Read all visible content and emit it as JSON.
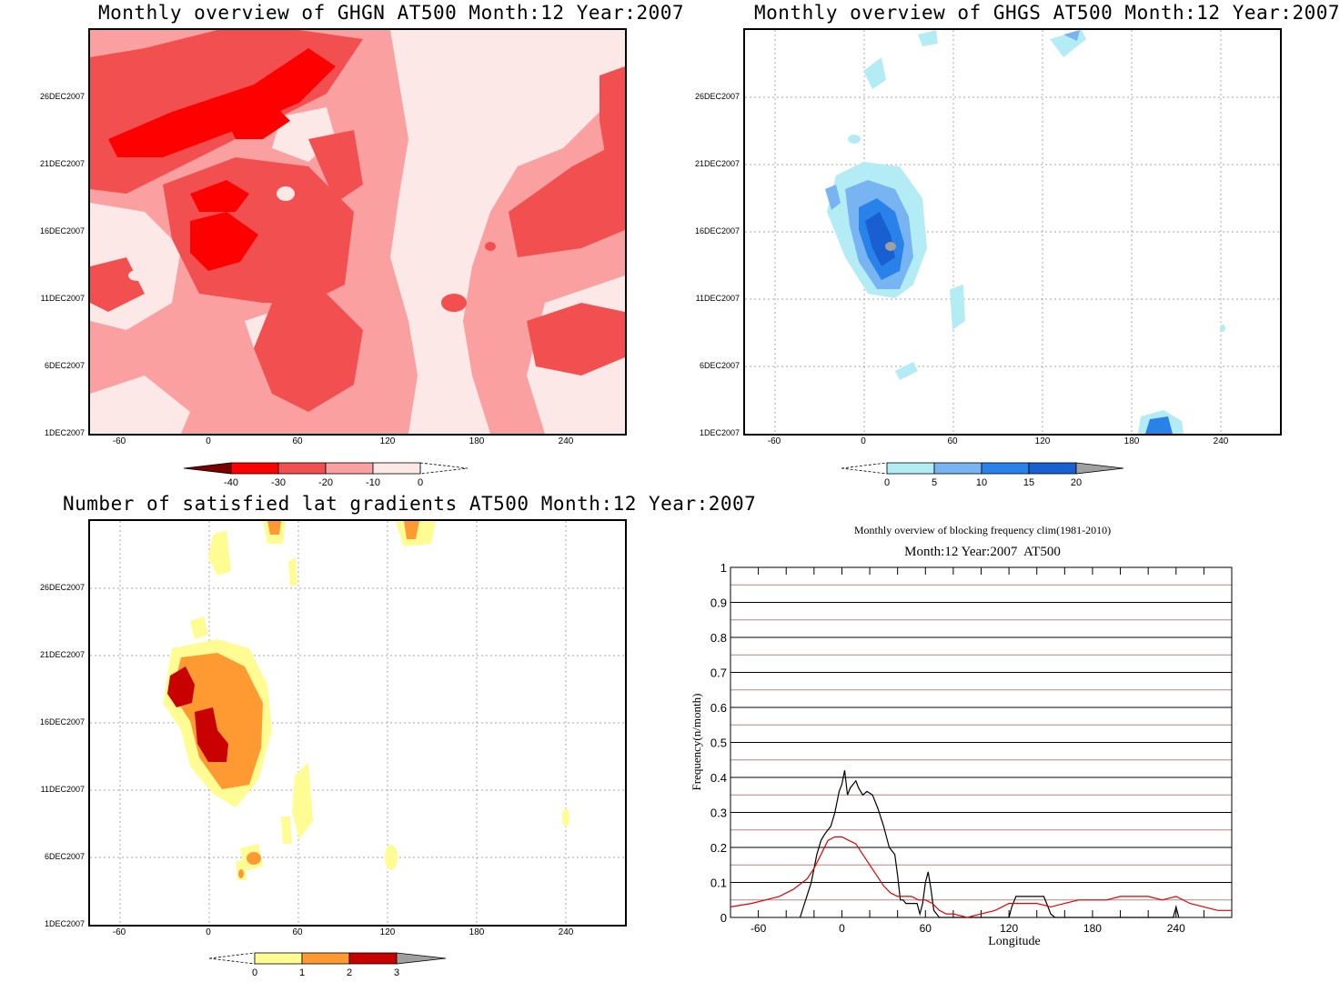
{
  "chart_data": [
    {
      "type": "heatmap",
      "title": "Monthly overview of GHGN AT500 Month:12 Year:2007",
      "x_ticks": [
        "-60",
        "0",
        "60",
        "120",
        "180",
        "240"
      ],
      "y_ticks": [
        "1DEC2007",
        "6DEC2007",
        "11DEC2007",
        "16DEC2007",
        "21DEC2007",
        "26DEC2007"
      ],
      "xlim": [
        -80,
        280
      ],
      "colorbar": {
        "labels": [
          "-40",
          "-30",
          "-20",
          "-10",
          "0"
        ],
        "colors": [
          "#7a0000",
          "#ff0000",
          "#f25050",
          "#fba0a0",
          "#fde8e8"
        ]
      }
    },
    {
      "type": "heatmap",
      "title": "Monthly overview of GHGS AT500 Month:12 Year:2007",
      "x_ticks": [
        "-60",
        "0",
        "60",
        "120",
        "180",
        "240"
      ],
      "y_ticks": [
        "1DEC2007",
        "6DEC2007",
        "11DEC2007",
        "16DEC2007",
        "21DEC2007",
        "26DEC2007"
      ],
      "xlim": [
        -80,
        280
      ],
      "colorbar": {
        "labels": [
          "0",
          "5",
          "10",
          "15",
          "20"
        ],
        "colors": [
          "#b4ecf6",
          "#78b4f2",
          "#2882ea",
          "#1860d2",
          "#a0a0a0"
        ]
      }
    },
    {
      "type": "heatmap",
      "title": "Number of satisfied lat gradients AT500 Month:12 Year:2007",
      "x_ticks": [
        "-60",
        "0",
        "60",
        "120",
        "180",
        "240"
      ],
      "y_ticks": [
        "1DEC2007",
        "6DEC2007",
        "11DEC2007",
        "16DEC2007",
        "21DEC2007",
        "26DEC2007"
      ],
      "xlim": [
        -80,
        280
      ],
      "colorbar": {
        "labels": [
          "0",
          "1",
          "2",
          "3"
        ],
        "colors": [
          "#fffc94",
          "#ff9a32",
          "#c80000",
          "#a0a0a0"
        ]
      }
    },
    {
      "type": "line",
      "title": "Monthly overview of blocking frequency clim(1981-2010)",
      "subtitle": "Month:12 Year:2007  AT500",
      "xlabel": "Longitude",
      "ylabel": "Frequency(n/month)",
      "xlim": [
        -80,
        280
      ],
      "ylim": [
        0,
        1
      ],
      "x_ticks": [
        "-60",
        "0",
        "60",
        "120",
        "180",
        "240"
      ],
      "y_ticks": [
        "0",
        "0.1",
        "0.2",
        "0.3",
        "0.4",
        "0.5",
        "0.6",
        "0.7",
        "0.8",
        "0.9",
        "1"
      ],
      "series": [
        {
          "color": "#000000",
          "x": [
            -30,
            -22,
            -18,
            -15,
            -12,
            -8,
            -5,
            -2,
            0,
            2,
            4,
            6,
            8,
            10,
            12,
            15,
            18,
            22,
            26,
            30,
            34,
            38,
            40,
            42,
            44,
            46,
            50,
            54,
            56,
            58,
            60,
            62,
            64,
            66,
            70,
            100,
            120,
            122,
            125,
            128,
            145,
            148,
            150,
            153,
            238,
            240,
            242
          ],
          "y": [
            0,
            0.1,
            0.18,
            0.22,
            0.24,
            0.26,
            0.3,
            0.36,
            0.38,
            0.42,
            0.35,
            0.37,
            0.38,
            0.39,
            0.37,
            0.35,
            0.36,
            0.35,
            0.31,
            0.26,
            0.2,
            0.18,
            0.12,
            0.05,
            0.05,
            0.04,
            0.04,
            0.04,
            0.01,
            0.04,
            0.1,
            0.13,
            0.08,
            0.02,
            0,
            0,
            0,
            0.03,
            0.06,
            0.06,
            0.06,
            0.03,
            0.01,
            0,
            0,
            0.03,
            0
          ]
        },
        {
          "color": "#e00000",
          "x": [
            -80,
            -65,
            -55,
            -45,
            -35,
            -25,
            -20,
            -15,
            -10,
            -5,
            0,
            5,
            10,
            15,
            20,
            25,
            30,
            35,
            40,
            45,
            50,
            55,
            60,
            65,
            70,
            75,
            80,
            90,
            100,
            110,
            120,
            130,
            140,
            150,
            160,
            170,
            180,
            190,
            200,
            210,
            220,
            230,
            240,
            250,
            260,
            270,
            280
          ],
          "y": [
            0.03,
            0.04,
            0.05,
            0.06,
            0.08,
            0.11,
            0.14,
            0.18,
            0.22,
            0.23,
            0.23,
            0.22,
            0.21,
            0.18,
            0.15,
            0.12,
            0.09,
            0.07,
            0.06,
            0.06,
            0.06,
            0.05,
            0.05,
            0.04,
            0.02,
            0.01,
            0.01,
            0.0,
            0.01,
            0.02,
            0.04,
            0.04,
            0.04,
            0.03,
            0.04,
            0.05,
            0.05,
            0.05,
            0.06,
            0.06,
            0.06,
            0.05,
            0.06,
            0.04,
            0.03,
            0.02,
            0.02
          ]
        }
      ]
    }
  ]
}
